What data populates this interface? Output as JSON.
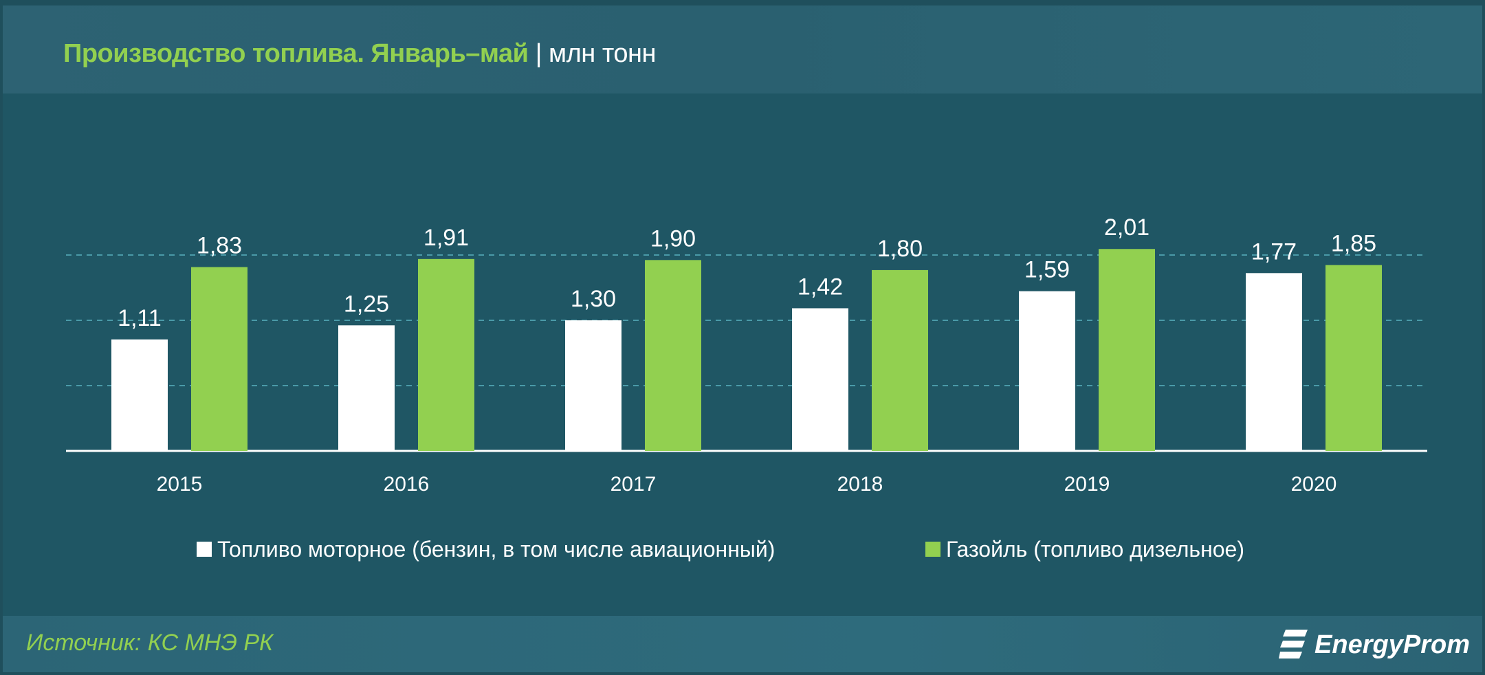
{
  "header": {
    "title": "Производство топлива. Январь–май",
    "separator": "|",
    "unit": "млн тонн"
  },
  "colors": {
    "background": "#1f5664",
    "header_bg": "#2c6272",
    "series_1": "#ffffff",
    "series_2": "#92d050",
    "title_green": "#92d050",
    "gridline": "#4a9aa8",
    "text": "#ffffff"
  },
  "chart_data": {
    "type": "bar",
    "categories": [
      "2015",
      "2016",
      "2017",
      "2018",
      "2019",
      "2020"
    ],
    "series": [
      {
        "name": "Топливо моторное (бензин, в том числе авиационный)",
        "values": [
          1.11,
          1.25,
          1.3,
          1.42,
          1.59,
          1.77
        ]
      },
      {
        "name": "Газойль (топливо дизельное)",
        "values": [
          1.83,
          1.91,
          1.9,
          1.8,
          2.01,
          1.85
        ]
      }
    ],
    "value_labels": [
      [
        "1,11",
        "1,25",
        "1,30",
        "1,42",
        "1,59",
        "1,77"
      ],
      [
        "1,83",
        "1,91",
        "1,90",
        "1,80",
        "2,01",
        "1,85"
      ]
    ],
    "ylim": [
      0,
      2.6
    ],
    "grid": true,
    "legend_position": "bottom"
  },
  "footer": {
    "source": "Источник: КС МНЭ РК",
    "logo": "EnergyProm"
  }
}
